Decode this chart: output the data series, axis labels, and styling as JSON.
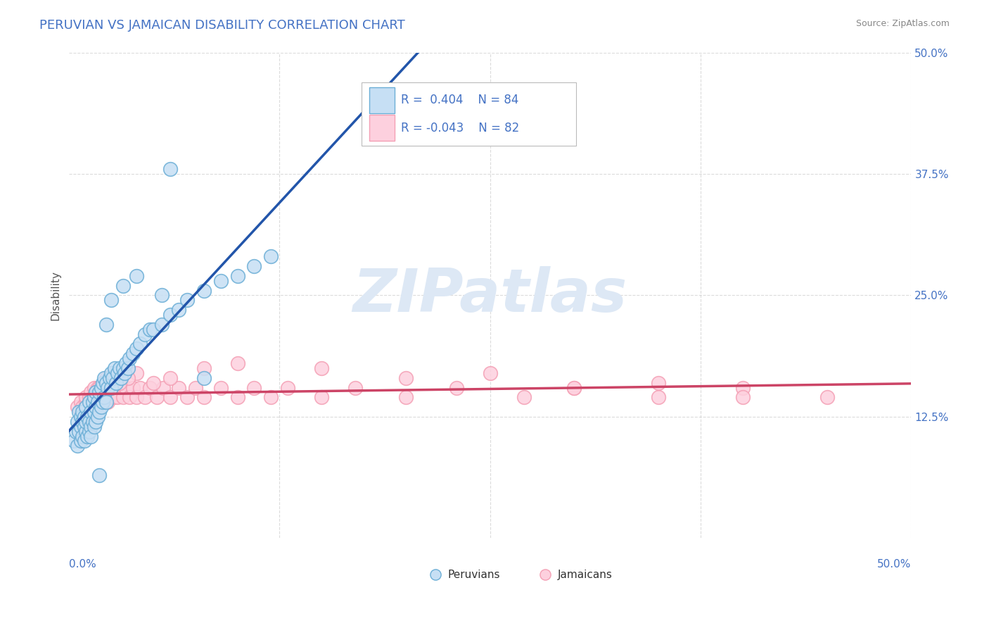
{
  "title": "PERUVIAN VS JAMAICAN DISABILITY CORRELATION CHART",
  "source": "Source: ZipAtlas.com",
  "ylabel": "Disability",
  "xlim": [
    0.0,
    0.5
  ],
  "ylim": [
    0.0,
    0.5
  ],
  "xticks": [
    0.0,
    0.125,
    0.25,
    0.375,
    0.5
  ],
  "yticks": [
    0.0,
    0.125,
    0.25,
    0.375,
    0.5
  ],
  "ytick_labels_right": [
    "",
    "12.5%",
    "25.0%",
    "37.5%",
    "50.0%"
  ],
  "peruvian_color": "#6baed6",
  "peruvian_fill": "#c6dff4",
  "jamaican_color": "#f4a0b5",
  "jamaican_fill": "#fdd0de",
  "background_color": "#ffffff",
  "grid_color": "#cccccc",
  "blue_line_color": "#2255aa",
  "pink_line_color": "#cc4466",
  "dash_line_color": "#aaaaaa",
  "peruvian_x": [
    0.003,
    0.004,
    0.005,
    0.005,
    0.006,
    0.006,
    0.007,
    0.007,
    0.007,
    0.008,
    0.008,
    0.008,
    0.009,
    0.009,
    0.009,
    0.01,
    0.01,
    0.01,
    0.011,
    0.011,
    0.012,
    0.012,
    0.012,
    0.013,
    0.013,
    0.013,
    0.014,
    0.014,
    0.015,
    0.015,
    0.015,
    0.016,
    0.016,
    0.016,
    0.017,
    0.017,
    0.018,
    0.018,
    0.019,
    0.019,
    0.02,
    0.02,
    0.021,
    0.021,
    0.022,
    0.022,
    0.023,
    0.024,
    0.025,
    0.025,
    0.026,
    0.027,
    0.028,
    0.029,
    0.03,
    0.031,
    0.032,
    0.033,
    0.034,
    0.035,
    0.036,
    0.038,
    0.04,
    0.042,
    0.045,
    0.048,
    0.05,
    0.055,
    0.06,
    0.065,
    0.07,
    0.08,
    0.09,
    0.1,
    0.11,
    0.12,
    0.025,
    0.04,
    0.06,
    0.08,
    0.032,
    0.022,
    0.018,
    0.055
  ],
  "peruvian_y": [
    0.1,
    0.11,
    0.12,
    0.095,
    0.13,
    0.11,
    0.1,
    0.115,
    0.125,
    0.105,
    0.12,
    0.13,
    0.1,
    0.115,
    0.125,
    0.11,
    0.12,
    0.135,
    0.105,
    0.125,
    0.11,
    0.12,
    0.14,
    0.115,
    0.13,
    0.105,
    0.12,
    0.14,
    0.115,
    0.13,
    0.145,
    0.12,
    0.135,
    0.15,
    0.125,
    0.14,
    0.13,
    0.15,
    0.135,
    0.155,
    0.14,
    0.16,
    0.145,
    0.165,
    0.14,
    0.16,
    0.155,
    0.165,
    0.17,
    0.155,
    0.165,
    0.175,
    0.16,
    0.17,
    0.175,
    0.165,
    0.175,
    0.17,
    0.18,
    0.175,
    0.185,
    0.19,
    0.195,
    0.2,
    0.21,
    0.215,
    0.215,
    0.22,
    0.23,
    0.235,
    0.245,
    0.255,
    0.265,
    0.27,
    0.28,
    0.29,
    0.245,
    0.27,
    0.38,
    0.165,
    0.26,
    0.22,
    0.065,
    0.25
  ],
  "jamaican_x": [
    0.005,
    0.007,
    0.008,
    0.009,
    0.01,
    0.01,
    0.011,
    0.012,
    0.012,
    0.013,
    0.013,
    0.014,
    0.015,
    0.015,
    0.016,
    0.016,
    0.017,
    0.017,
    0.018,
    0.018,
    0.019,
    0.02,
    0.02,
    0.021,
    0.022,
    0.023,
    0.024,
    0.025,
    0.026,
    0.027,
    0.028,
    0.029,
    0.03,
    0.032,
    0.034,
    0.036,
    0.038,
    0.04,
    0.042,
    0.045,
    0.048,
    0.052,
    0.056,
    0.06,
    0.065,
    0.07,
    0.075,
    0.08,
    0.09,
    0.1,
    0.11,
    0.12,
    0.13,
    0.15,
    0.17,
    0.2,
    0.23,
    0.27,
    0.3,
    0.35,
    0.4,
    0.45,
    0.15,
    0.3,
    0.4,
    0.2,
    0.25,
    0.35,
    0.1,
    0.08,
    0.06,
    0.05,
    0.04,
    0.035,
    0.03,
    0.025,
    0.022,
    0.018,
    0.016,
    0.014,
    0.012,
    0.01
  ],
  "jamaican_y": [
    0.135,
    0.14,
    0.135,
    0.13,
    0.14,
    0.145,
    0.135,
    0.13,
    0.145,
    0.14,
    0.15,
    0.135,
    0.14,
    0.155,
    0.135,
    0.15,
    0.14,
    0.155,
    0.135,
    0.15,
    0.145,
    0.14,
    0.155,
    0.145,
    0.155,
    0.14,
    0.155,
    0.145,
    0.155,
    0.145,
    0.155,
    0.145,
    0.155,
    0.145,
    0.155,
    0.145,
    0.155,
    0.145,
    0.155,
    0.145,
    0.155,
    0.145,
    0.155,
    0.145,
    0.155,
    0.145,
    0.155,
    0.145,
    0.155,
    0.145,
    0.155,
    0.145,
    0.155,
    0.145,
    0.155,
    0.145,
    0.155,
    0.145,
    0.155,
    0.145,
    0.155,
    0.145,
    0.175,
    0.155,
    0.145,
    0.165,
    0.17,
    0.16,
    0.18,
    0.175,
    0.165,
    0.16,
    0.17,
    0.165,
    0.16,
    0.155,
    0.165,
    0.155,
    0.15,
    0.145,
    0.14,
    0.135
  ]
}
